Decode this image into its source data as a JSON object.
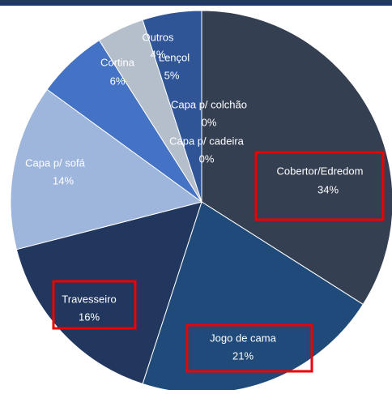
{
  "chart_data": {
    "type": "pie",
    "categories": [
      "Cobertor/Edredom",
      "Jogo de cama",
      "Travesseiro",
      "Capa p/ sofá",
      "Cortina",
      "Outros",
      "Lençol",
      "Capa p/ colchão",
      "Capa p/ cadeira"
    ],
    "values": [
      34,
      21,
      16,
      14,
      6,
      4,
      5,
      0,
      0
    ],
    "value_labels": [
      "34%",
      "21%",
      "16%",
      "14%",
      "6%",
      "4%",
      "5%",
      "0%",
      "0%"
    ],
    "colors": [
      "#353f52",
      "#1f4a7a",
      "#22375e",
      "#9fb6dc",
      "#4472c4",
      "#b5bfcc",
      "#2f5597",
      "#e8e8e8",
      "#d0d0d0"
    ]
  }
}
